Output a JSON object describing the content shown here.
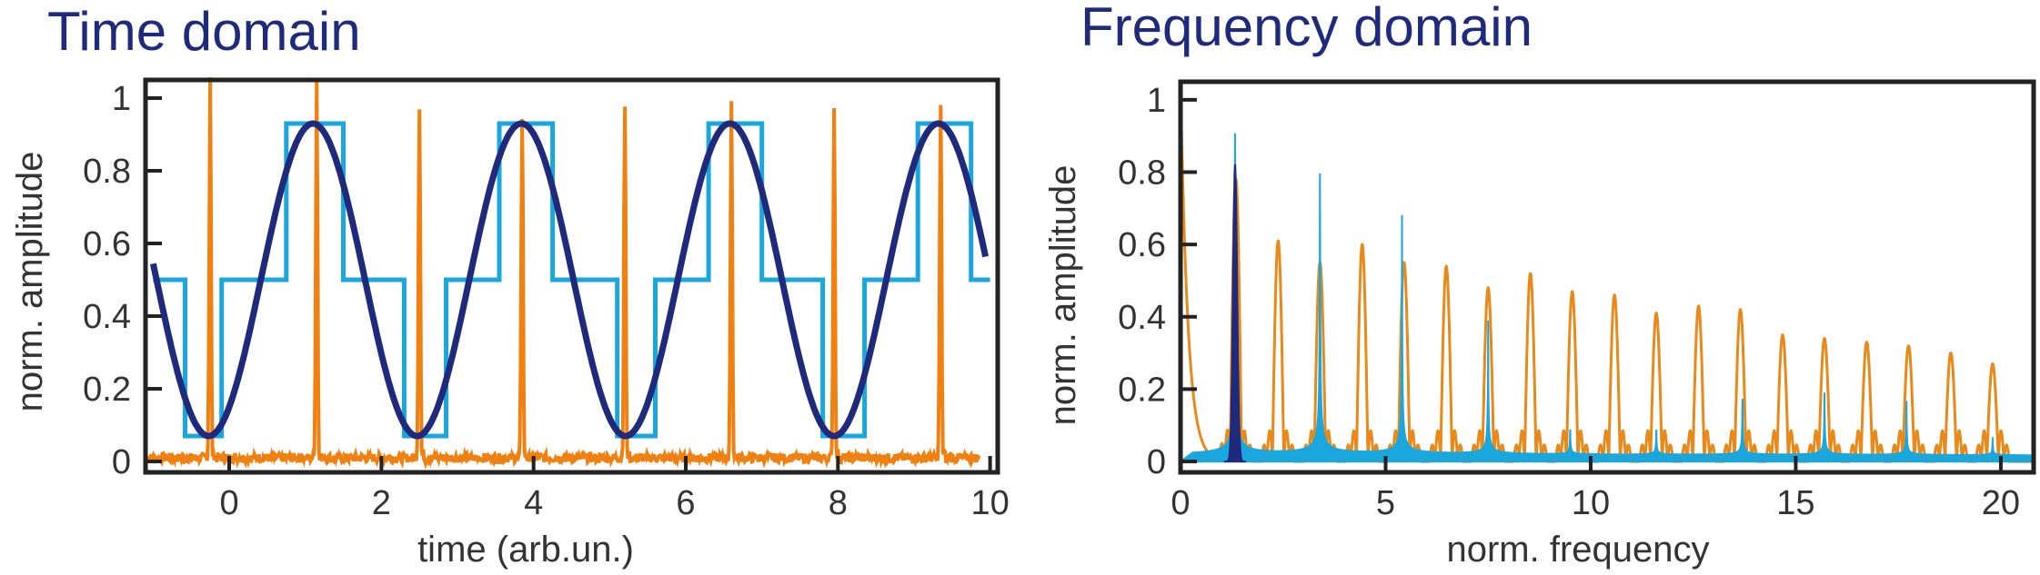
{
  "chart_data": [
    {
      "type": "line",
      "title": "Time domain",
      "xlabel": "time (arb.un.)",
      "ylabel": "norm. amplitude",
      "xlim": [
        -1.1,
        10.1
      ],
      "ylim": [
        -0.03,
        1.05
      ],
      "xticks": [
        0,
        2,
        4,
        6,
        8,
        10
      ],
      "xtick_labels": [
        "0",
        "2",
        "4",
        "6",
        "8",
        "10"
      ],
      "yticks": [
        0,
        0.2,
        0.4,
        0.6,
        0.8,
        1
      ],
      "ytick_labels": [
        "0",
        "0.2",
        "0.4",
        "0.6",
        "0.8",
        "1"
      ],
      "grid": false,
      "sine": {
        "period": 2.74,
        "peak_t": 1.1,
        "min": 0.07,
        "max": 0.93,
        "t_start": -1.0,
        "t_end": 9.95
      },
      "steps": {
        "x": [
          -1.0,
          -0.58,
          -0.58,
          -0.1,
          -0.1,
          0.75,
          0.75,
          1.5,
          1.5,
          2.3,
          2.3,
          2.85,
          2.85,
          3.55,
          3.55,
          4.25,
          4.25,
          5.1,
          5.1,
          5.6,
          5.6,
          6.3,
          6.3,
          7.0,
          7.0,
          7.8,
          7.8,
          8.35,
          8.35,
          9.05,
          9.05,
          9.75,
          9.75,
          10.0
        ],
        "y": [
          0.5,
          0.5,
          0.07,
          0.07,
          0.5,
          0.5,
          0.93,
          0.93,
          0.5,
          0.5,
          0.07,
          0.07,
          0.5,
          0.5,
          0.93,
          0.93,
          0.5,
          0.5,
          0.07,
          0.07,
          0.5,
          0.5,
          0.93,
          0.93,
          0.5,
          0.5,
          0.07,
          0.07,
          0.5,
          0.5,
          0.93,
          0.93,
          0.5,
          0.5
        ]
      },
      "pulses": {
        "t": [
          -0.25,
          1.15,
          2.5,
          3.85,
          5.2,
          6.6,
          7.95,
          9.35
        ],
        "height": [
          0.98,
          0.97,
          0.97,
          0.94,
          0.97,
          0.97,
          0.96,
          0.97
        ],
        "baseline": 0.01,
        "t_start": -1.1,
        "t_end": 9.85
      },
      "colors": {
        "sine": "#1f2a7c",
        "steps": "#1aa7dd",
        "pulses": "#f08010"
      }
    },
    {
      "type": "line",
      "title": "Frequency domain",
      "xlabel": "norm. frequency",
      "ylabel": "norm. amplitude",
      "xlim": [
        0,
        20.8
      ],
      "ylim": [
        -0.03,
        1.05
      ],
      "xticks": [
        0,
        5,
        10,
        15,
        20
      ],
      "xtick_labels": [
        "0",
        "5",
        "10",
        "15",
        "20"
      ],
      "yticks": [
        0,
        0.2,
        0.4,
        0.6,
        0.8,
        1
      ],
      "ytick_labels": [
        "0",
        "0.2",
        "0.4",
        "0.6",
        "0.8",
        "1"
      ],
      "grid": false,
      "sine_peak": {
        "f": 1.33,
        "height": 0.82,
        "width": 0.09
      },
      "step_peaks": {
        "f": [
          1.33,
          3.4,
          5.4,
          7.5,
          9.5,
          11.6,
          13.7,
          15.7,
          17.7,
          19.8
        ],
        "height": [
          1.03,
          0.9,
          0.66,
          0.37,
          0.08,
          0.08,
          0.18,
          0.2,
          0.15,
          0.05
        ]
      },
      "comb_lobes": {
        "f": [
          1.35,
          2.38,
          3.4,
          4.43,
          5.45,
          6.48,
          7.5,
          8.53,
          9.55,
          10.58,
          11.6,
          12.63,
          13.65,
          14.68,
          15.7,
          16.73,
          17.75,
          18.78,
          19.8
        ],
        "height": [
          0.78,
          0.61,
          0.55,
          0.6,
          0.55,
          0.54,
          0.48,
          0.52,
          0.47,
          0.46,
          0.41,
          0.43,
          0.42,
          0.35,
          0.34,
          0.33,
          0.32,
          0.3,
          0.27
        ],
        "dc_height": 1.05,
        "side_height": 0.12
      },
      "colors": {
        "sine": "#1f2a7c",
        "steps": "#1aa7dd",
        "comb": "#e8891a"
      }
    }
  ]
}
